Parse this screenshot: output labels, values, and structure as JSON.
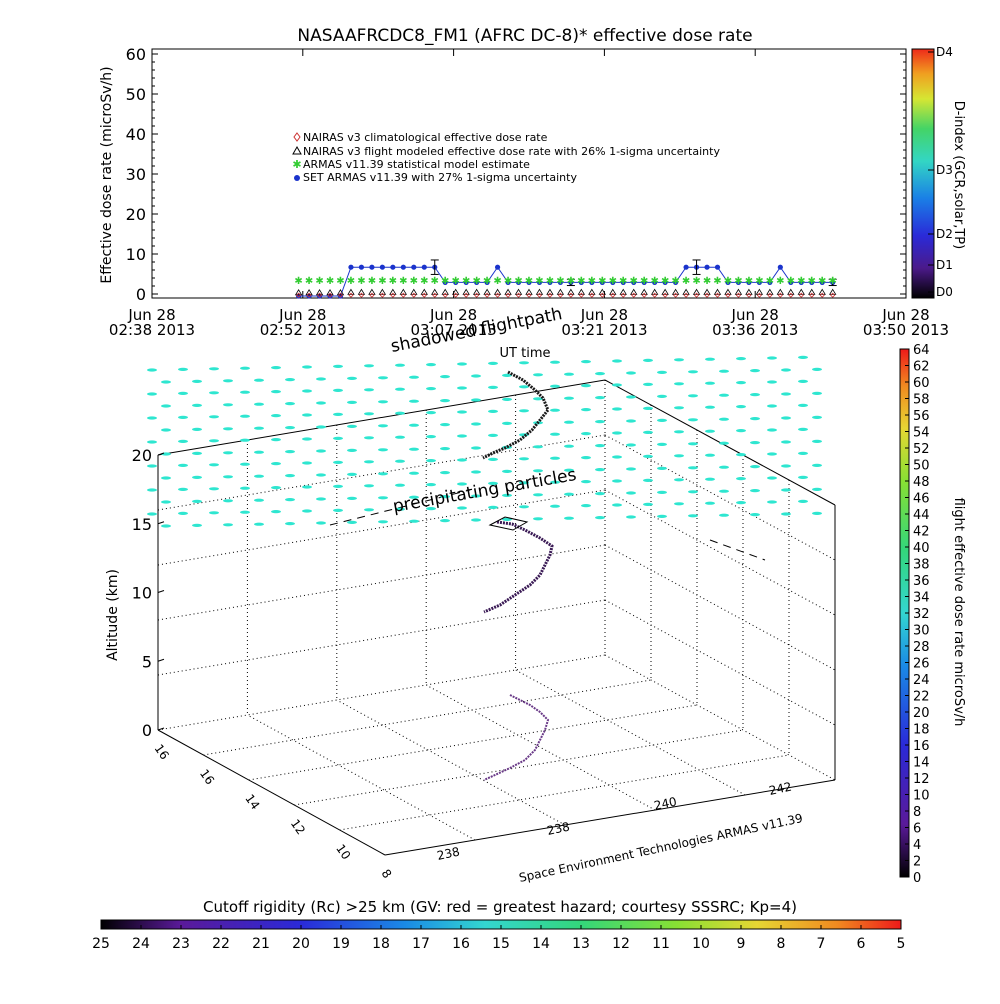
{
  "chart_data": [
    {
      "type": "line",
      "title": "NASAAFRCDC8_FM1 (AFRC DC-8)* effective dose rate",
      "ylabel": "Effective dose rate (microSv/h)",
      "ylim": [
        0,
        60
      ],
      "yticks": [
        "0",
        "10",
        "20",
        "30",
        "40",
        "50",
        "60"
      ],
      "xticks": [
        {
          "line1": "Jun 28",
          "line2": "02:38 2013"
        },
        {
          "line1": "Jun 28",
          "line2": "02:52 2013"
        },
        {
          "line1": "Jun 28",
          "line2": "03:07 2013"
        },
        {
          "line1": "Jun 28",
          "line2": "03:21 2013"
        },
        {
          "line1": "Jun 28",
          "line2": "03:36 2013"
        },
        {
          "line1": "Jun 28",
          "line2": "03:50 2013"
        }
      ],
      "xlim_minutes": [
        0,
        72
      ],
      "legend": [
        {
          "label": "NAIRAS v3 climatological effective dose rate",
          "marker": "diamond",
          "color": "#cc3333"
        },
        {
          "label": "NAIRAS v3 flight modeled effective dose rate with 26% 1-sigma uncertainty",
          "marker": "triangle",
          "color": "#000000"
        },
        {
          "label": "ARMAS v11.39 statistical model estimate",
          "marker": "star",
          "color": "#33cc33"
        },
        {
          "label": "SET ARMAS v11.39 with 27% 1-sigma uncertainty",
          "marker": "circle",
          "color": "#1a33cc"
        }
      ],
      "series": [
        {
          "name": "SET ARMAS v11.39 with 27% 1-sigma uncertainty",
          "color": "#1a33cc",
          "x": [
            14,
            15,
            16,
            17,
            18,
            19,
            20,
            21,
            22,
            23,
            24,
            25,
            26,
            27,
            28,
            29,
            30,
            31,
            32,
            33,
            34,
            35,
            36,
            37,
            38,
            39,
            40,
            41,
            42,
            43,
            44,
            45,
            46,
            47,
            48,
            49,
            50,
            51,
            52,
            53,
            54,
            55,
            56,
            57,
            58,
            59,
            60,
            61,
            62,
            63,
            64,
            65
          ],
          "y": [
            -0.5,
            -0.5,
            -0.5,
            -0.5,
            -0.5,
            6.7,
            6.7,
            6.7,
            6.7,
            6.7,
            6.7,
            6.7,
            6.7,
            6.7,
            2.9,
            2.9,
            2.9,
            2.9,
            2.9,
            6.7,
            2.9,
            2.9,
            2.9,
            2.9,
            2.9,
            2.9,
            2.9,
            2.9,
            2.9,
            2.9,
            2.9,
            2.9,
            2.9,
            2.9,
            2.9,
            2.9,
            2.9,
            6.7,
            6.7,
            6.7,
            6.7,
            2.9,
            2.9,
            2.9,
            2.9,
            2.9,
            6.7,
            2.9,
            2.9,
            2.9,
            2.9,
            2.9
          ]
        },
        {
          "name": "ARMAS v11.39 statistical model estimate",
          "color": "#33cc33",
          "x": [
            14,
            15,
            16,
            17,
            18,
            19,
            20,
            21,
            22,
            23,
            24,
            25,
            26,
            27,
            28,
            29,
            30,
            31,
            32,
            33,
            34,
            35,
            36,
            37,
            38,
            39,
            40,
            41,
            42,
            43,
            44,
            45,
            46,
            47,
            48,
            49,
            50,
            51,
            52,
            53,
            54,
            55,
            56,
            57,
            58,
            59,
            60,
            61,
            62,
            63,
            64,
            65
          ],
          "y": [
            3.5,
            3.5,
            3.5,
            3.5,
            3.5,
            3.5,
            3.5,
            3.5,
            3.5,
            3.5,
            3.5,
            3.5,
            3.5,
            3.5,
            3.5,
            3.5,
            3.5,
            3.5,
            3.5,
            3.5,
            3.5,
            3.5,
            3.5,
            3.5,
            3.5,
            3.5,
            3.5,
            3.5,
            3.5,
            3.5,
            3.5,
            3.5,
            3.5,
            3.5,
            3.5,
            3.5,
            3.5,
            3.5,
            3.5,
            3.5,
            3.5,
            3.5,
            3.5,
            3.5,
            3.5,
            3.5,
            3.5,
            3.5,
            3.5,
            3.5,
            3.5,
            3.5
          ]
        },
        {
          "name": "NAIRAS v3 flight modeled effective dose rate with 26% 1-sigma uncertainty",
          "color": "#000000",
          "x": [
            14,
            15,
            16,
            17,
            18,
            19,
            20,
            21,
            22,
            23,
            24,
            25,
            26,
            27,
            28,
            29,
            30,
            31,
            32,
            33,
            34,
            35,
            36,
            37,
            38,
            39,
            40,
            41,
            42,
            43,
            44,
            45,
            46,
            47,
            48,
            49,
            50,
            51,
            52,
            53,
            54,
            55,
            56,
            57,
            58,
            59,
            60,
            61,
            62,
            63,
            64,
            65
          ],
          "y": [
            0.3,
            0.3,
            0.3,
            0.3,
            0.3,
            0.4,
            0.4,
            0.4,
            0.4,
            0.4,
            0.4,
            0.4,
            0.4,
            0.4,
            0.4,
            0.4,
            0.4,
            0.4,
            0.4,
            0.4,
            0.4,
            0.4,
            0.4,
            0.4,
            0.4,
            0.4,
            0.4,
            0.4,
            0.4,
            0.4,
            0.4,
            0.4,
            0.4,
            0.4,
            0.4,
            0.4,
            0.4,
            0.4,
            0.4,
            0.4,
            0.4,
            0.4,
            0.4,
            0.4,
            0.4,
            0.4,
            0.4,
            0.4,
            0.4,
            0.4,
            0.4,
            0.4
          ]
        },
        {
          "name": "NAIRAS v3 climatological effective dose rate",
          "color": "#cc3333",
          "x": [
            14,
            15,
            16,
            17,
            18,
            19,
            20,
            21,
            22,
            23,
            24,
            25,
            26,
            27,
            28,
            29,
            30,
            31,
            32,
            33,
            34,
            35,
            36,
            37,
            38,
            39,
            40,
            41,
            42,
            43,
            44,
            45,
            46,
            47,
            48,
            49,
            50,
            51,
            52,
            53,
            54,
            55,
            56,
            57,
            58,
            59,
            60,
            61,
            62,
            63,
            64,
            65
          ],
          "y": [
            -0.3,
            -0.3,
            -0.3,
            -0.3,
            -0.3,
            -0.3,
            -0.3,
            -0.3,
            -0.3,
            -0.3,
            -0.3,
            -0.3,
            -0.3,
            -0.3,
            -0.3,
            -0.3,
            -0.3,
            -0.3,
            -0.3,
            -0.3,
            -0.3,
            -0.3,
            -0.3,
            -0.3,
            -0.3,
            -0.3,
            -0.3,
            -0.3,
            -0.3,
            -0.3,
            -0.3,
            -0.3,
            -0.3,
            -0.3,
            -0.3,
            -0.3,
            -0.3,
            -0.3,
            -0.3,
            -0.3,
            -0.3,
            -0.3,
            -0.3,
            -0.3,
            -0.3,
            -0.3,
            -0.3,
            -0.3,
            -0.3,
            -0.3,
            -0.3,
            -0.3
          ]
        }
      ],
      "right_colorbar": {
        "label": "D-index (GCR,solar,TP)",
        "ticks": [
          "D0",
          "D1",
          "D2",
          "D3",
          "D4"
        ]
      }
    },
    {
      "type": "scatter",
      "zlabel": "Altitude (km)",
      "zticks": [
        "0",
        "5",
        "10",
        "15",
        "20"
      ],
      "latitude_ticks": [
        "16",
        "16",
        "14",
        "12",
        "10",
        "8"
      ],
      "longitude_ticks": [
        "238",
        "238",
        "240",
        "242"
      ],
      "annotations": {
        "shadowed": "shadowed flightpath",
        "ut_time": "UT time",
        "precipitating": "precipitating particles",
        "credit": "Space Environment Technologies ARMAS v11.39"
      },
      "colorbar_right": {
        "label": "flight effective dose rate microSv/h",
        "ticks": [
          "0",
          "2",
          "4",
          "6",
          "8",
          "10",
          "12",
          "14",
          "16",
          "18",
          "20",
          "22",
          "24",
          "26",
          "28",
          "30",
          "32",
          "34",
          "36",
          "38",
          "40",
          "42",
          "44",
          "46",
          "48",
          "50",
          "52",
          "54",
          "56",
          "58",
          "60",
          "62",
          "64"
        ]
      },
      "colorbar_bottom": {
        "label": "Cutoff rigidity (Rc) >25 km (GV: red = greatest hazard; courtesy SSSRC; Kp=4)",
        "ticks": [
          "25",
          "24",
          "23",
          "22",
          "21",
          "20",
          "19",
          "18",
          "17",
          "16",
          "15",
          "14",
          "13",
          "12",
          "11",
          "10",
          "9",
          "8",
          "7",
          "6",
          "5"
        ]
      }
    }
  ]
}
